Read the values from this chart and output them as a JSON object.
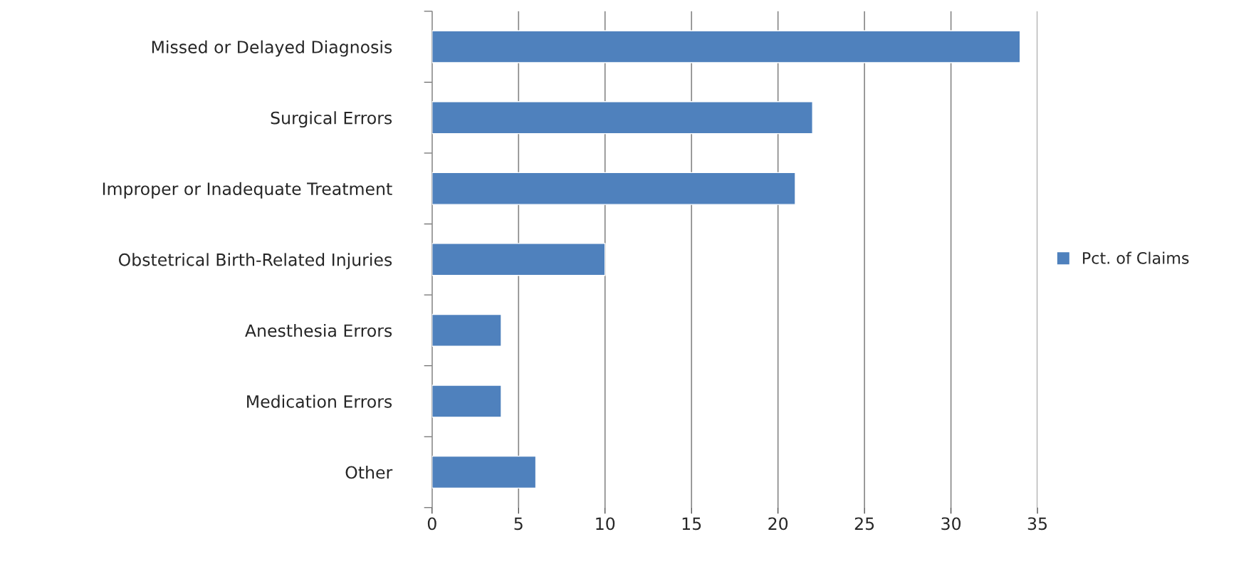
{
  "chart_data": {
    "type": "bar",
    "orientation": "horizontal",
    "categories": [
      "Missed or Delayed Diagnosis",
      "Surgical Errors",
      "Improper or Inadequate Treatment",
      "Obstetrical Birth-Related Injuries",
      "Anesthesia Errors",
      "Medication Errors",
      "Other"
    ],
    "series": [
      {
        "name": "Pct. of Claims",
        "color": "#4f81bd",
        "values": [
          34,
          22,
          21,
          10,
          4,
          4,
          6
        ]
      }
    ],
    "xlim": [
      0,
      35
    ],
    "xticks": [
      0,
      5,
      10,
      15,
      20,
      25,
      30,
      35
    ],
    "grid": "x",
    "legend": "right"
  }
}
